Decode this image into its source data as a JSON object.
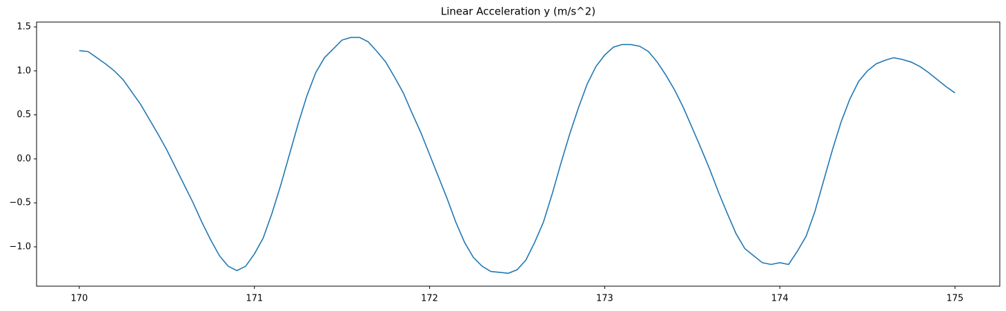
{
  "chart_data": {
    "type": "line",
    "title": "Linear Acceleration y (m/s^2)",
    "x": [
      170.0,
      170.05,
      170.1,
      170.15,
      170.2,
      170.25,
      170.3,
      170.35,
      170.4,
      170.45,
      170.5,
      170.55,
      170.6,
      170.65,
      170.7,
      170.75,
      170.8,
      170.85,
      170.9,
      170.95,
      171.0,
      171.05,
      171.1,
      171.15,
      171.2,
      171.25,
      171.3,
      171.35,
      171.4,
      171.45,
      171.5,
      171.55,
      171.6,
      171.65,
      171.7,
      171.75,
      171.8,
      171.85,
      171.9,
      171.95,
      172.0,
      172.05,
      172.1,
      172.15,
      172.2,
      172.25,
      172.3,
      172.35,
      172.4,
      172.45,
      172.5,
      172.55,
      172.6,
      172.65,
      172.7,
      172.75,
      172.8,
      172.85,
      172.9,
      172.95,
      173.0,
      173.05,
      173.1,
      173.15,
      173.2,
      173.25,
      173.3,
      173.35,
      173.4,
      173.45,
      173.5,
      173.55,
      173.6,
      173.65,
      173.7,
      173.75,
      173.8,
      173.85,
      173.9,
      173.95,
      174.0,
      174.05,
      174.1,
      174.15,
      174.2,
      174.25,
      174.3,
      174.35,
      174.4,
      174.45,
      174.5,
      174.55,
      174.6,
      174.65,
      174.7,
      174.75,
      174.8,
      174.85,
      174.9,
      174.95,
      175.0
    ],
    "series": [
      {
        "color": "#1f77b4",
        "values": [
          1.23,
          1.22,
          1.15,
          1.08,
          1.0,
          0.9,
          0.76,
          0.62,
          0.45,
          0.28,
          0.1,
          -0.1,
          -0.3,
          -0.5,
          -0.72,
          -0.92,
          -1.1,
          -1.22,
          -1.27,
          -1.22,
          -1.08,
          -0.9,
          -0.62,
          -0.3,
          0.05,
          0.4,
          0.72,
          0.98,
          1.15,
          1.25,
          1.35,
          1.38,
          1.38,
          1.33,
          1.22,
          1.1,
          0.93,
          0.75,
          0.52,
          0.3,
          0.05,
          -0.2,
          -0.45,
          -0.72,
          -0.95,
          -1.12,
          -1.22,
          -1.28,
          -1.29,
          -1.3,
          -1.26,
          -1.15,
          -0.95,
          -0.72,
          -0.4,
          -0.05,
          0.28,
          0.58,
          0.85,
          1.05,
          1.18,
          1.27,
          1.3,
          1.3,
          1.28,
          1.22,
          1.1,
          0.95,
          0.78,
          0.58,
          0.35,
          0.12,
          -0.12,
          -0.38,
          -0.62,
          -0.85,
          -1.02,
          -1.1,
          -1.18,
          -1.2,
          -1.18,
          -1.2,
          -1.05,
          -0.88,
          -0.6,
          -0.25,
          0.1,
          0.42,
          0.68,
          0.88,
          1.0,
          1.08,
          1.12,
          1.15,
          1.13,
          1.1,
          1.05,
          0.98,
          0.9,
          0.82,
          0.75
        ]
      }
    ],
    "xlim": [
      169.756,
      175.256
    ],
    "xticks": [
      170,
      171,
      172,
      173,
      174,
      175
    ],
    "ylim": [
      -1.447,
      1.555
    ],
    "yticks": [
      {
        "value": -1.0,
        "label": "−1.0"
      },
      {
        "value": -0.5,
        "label": "−0.5"
      },
      {
        "value": 0.0,
        "label": "0.0"
      },
      0.5,
      {
        "value": 1.0,
        "label": "1.0"
      },
      1.5
    ],
    "grid": false
  }
}
